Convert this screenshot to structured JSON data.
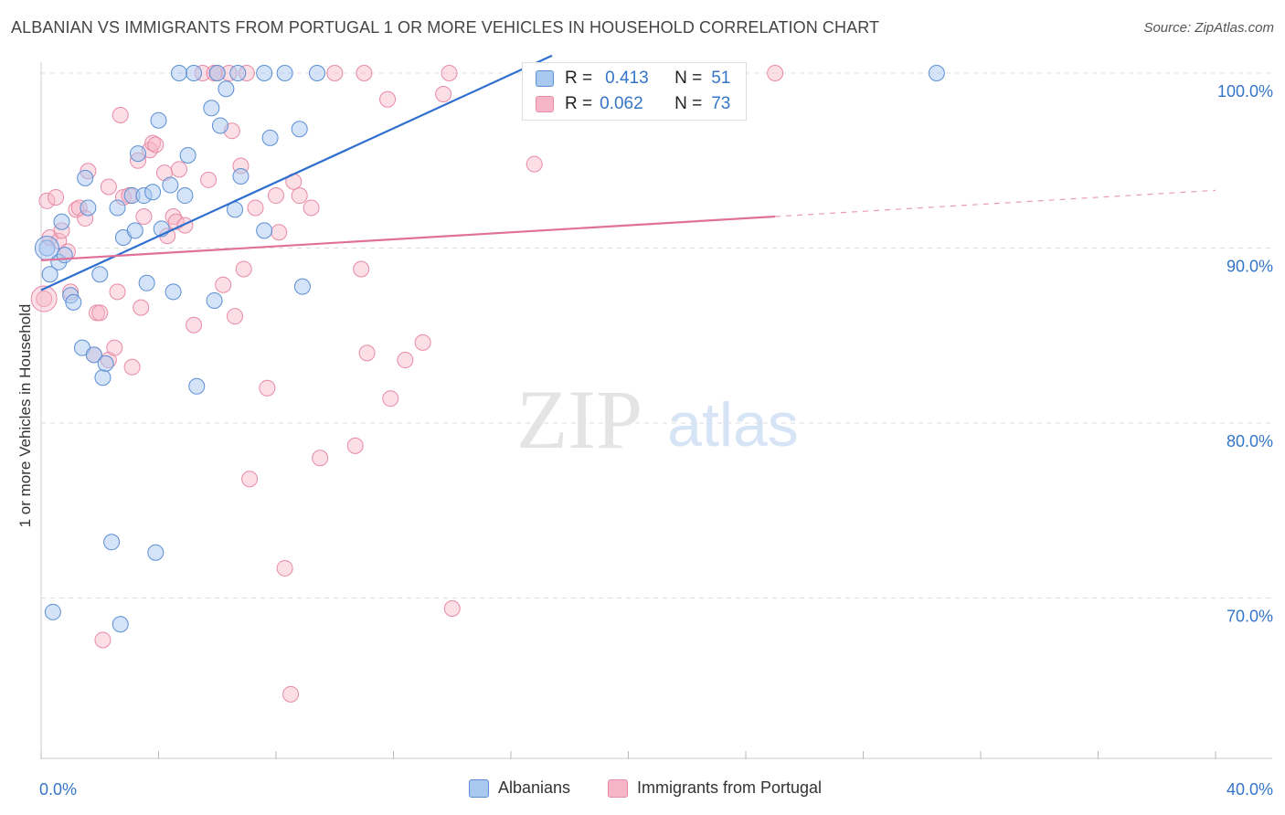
{
  "header": {
    "title": "ALBANIAN VS IMMIGRANTS FROM PORTUGAL 1 OR MORE VEHICLES IN HOUSEHOLD CORRELATION CHART",
    "source": "Source: ZipAtlas.com"
  },
  "watermark": {
    "zip": "ZIP",
    "atlas": "atlas"
  },
  "legend": {
    "r_label": "R =",
    "n_label": "N =",
    "series": [
      {
        "r": "0.413",
        "n": "51"
      },
      {
        "r": "0.062",
        "n": "73"
      }
    ]
  },
  "colors": {
    "blue_fill": "#a9c8ef",
    "blue_stroke": "#5b8fd4",
    "blue_line": "#2f6fcd",
    "pink_fill": "#f7b6c8",
    "pink_stroke": "#e88aa6",
    "pink_line": "#e0719a",
    "axis_label": "#3575c9",
    "grid": "#dddddd"
  },
  "chart_data": {
    "type": "scatter",
    "title": "ALBANIAN VS IMMIGRANTS FROM PORTUGAL 1 OR MORE VEHICLES IN HOUSEHOLD CORRELATION CHART",
    "xlabel": "",
    "ylabel": "1 or more Vehicles in Household",
    "xlim": [
      0,
      40
    ],
    "ylim": [
      60.8,
      101.8
    ],
    "x_tick_labels": [
      "0.0%",
      "40.0%"
    ],
    "y_ticks": [
      70,
      80,
      90,
      100
    ],
    "y_tick_labels": [
      "70.0%",
      "80.0%",
      "90.0%",
      "100.0%"
    ],
    "grid": true,
    "legend_position": "top-center",
    "series": [
      {
        "name": "Albanians",
        "color": "#a9c8ef",
        "r": 0.413,
        "n": 51,
        "trend": {
          "x": [
            0.0,
            17.4
          ],
          "y": [
            87.6,
            101.0
          ]
        },
        "points": [
          [
            0.2,
            90.0
          ],
          [
            0.3,
            88.5
          ],
          [
            0.4,
            69.2
          ],
          [
            0.6,
            89.2
          ],
          [
            0.7,
            91.5
          ],
          [
            0.8,
            89.6
          ],
          [
            1.0,
            87.3
          ],
          [
            1.1,
            86.9
          ],
          [
            1.4,
            84.3
          ],
          [
            1.5,
            94.0
          ],
          [
            1.6,
            92.3
          ],
          [
            1.8,
            83.9
          ],
          [
            2.0,
            88.5
          ],
          [
            2.1,
            82.6
          ],
          [
            2.2,
            83.4
          ],
          [
            2.4,
            73.2
          ],
          [
            2.6,
            92.3
          ],
          [
            2.7,
            68.5
          ],
          [
            2.8,
            90.6
          ],
          [
            3.1,
            93.0
          ],
          [
            3.2,
            91.0
          ],
          [
            3.3,
            95.4
          ],
          [
            3.5,
            93.0
          ],
          [
            3.6,
            88.0
          ],
          [
            3.8,
            93.2
          ],
          [
            3.9,
            72.6
          ],
          [
            4.0,
            97.3
          ],
          [
            4.1,
            91.1
          ],
          [
            4.4,
            93.6
          ],
          [
            4.5,
            87.5
          ],
          [
            4.7,
            100.0
          ],
          [
            4.9,
            93.0
          ],
          [
            5.0,
            95.3
          ],
          [
            5.2,
            100.0
          ],
          [
            5.3,
            82.1
          ],
          [
            5.8,
            98.0
          ],
          [
            5.9,
            87.0
          ],
          [
            6.0,
            100.0
          ],
          [
            6.1,
            97.0
          ],
          [
            6.3,
            99.1
          ],
          [
            6.6,
            92.2
          ],
          [
            6.7,
            100.0
          ],
          [
            6.8,
            94.1
          ],
          [
            7.6,
            100.0
          ],
          [
            7.6,
            91.0
          ],
          [
            7.8,
            96.3
          ],
          [
            8.3,
            100.0
          ],
          [
            8.8,
            96.8
          ],
          [
            8.9,
            87.8
          ],
          [
            9.4,
            100.0
          ],
          [
            30.5,
            100.0
          ]
        ]
      },
      {
        "name": "Immigrants from Portugal",
        "color": "#f7b6c8",
        "r": 0.062,
        "n": 73,
        "trend": {
          "x": [
            0.0,
            25.0
          ],
          "y": [
            89.3,
            91.8
          ]
        },
        "trend_extension": {
          "x": [
            25.0,
            40.0
          ],
          "y": [
            91.8,
            93.3
          ]
        },
        "points": [
          [
            0.1,
            87.1
          ],
          [
            0.2,
            92.7
          ],
          [
            0.3,
            90.6
          ],
          [
            0.5,
            92.9
          ],
          [
            0.6,
            90.4
          ],
          [
            0.7,
            91.0
          ],
          [
            0.9,
            89.8
          ],
          [
            1.0,
            87.5
          ],
          [
            1.2,
            92.2
          ],
          [
            1.3,
            92.3
          ],
          [
            1.5,
            91.7
          ],
          [
            1.6,
            94.4
          ],
          [
            1.8,
            83.9
          ],
          [
            1.9,
            86.3
          ],
          [
            2.0,
            86.3
          ],
          [
            2.1,
            67.6
          ],
          [
            2.3,
            83.6
          ],
          [
            2.3,
            93.5
          ],
          [
            2.5,
            84.3
          ],
          [
            2.6,
            87.5
          ],
          [
            2.7,
            97.6
          ],
          [
            2.8,
            92.9
          ],
          [
            3.0,
            93.0
          ],
          [
            3.1,
            83.2
          ],
          [
            3.3,
            95.0
          ],
          [
            3.4,
            86.6
          ],
          [
            3.5,
            91.8
          ],
          [
            3.7,
            95.6
          ],
          [
            3.8,
            96.0
          ],
          [
            3.9,
            95.9
          ],
          [
            4.2,
            94.3
          ],
          [
            4.3,
            90.7
          ],
          [
            4.5,
            91.8
          ],
          [
            4.6,
            91.5
          ],
          [
            4.7,
            94.5
          ],
          [
            4.9,
            91.3
          ],
          [
            5.2,
            85.6
          ],
          [
            5.5,
            100.0
          ],
          [
            5.7,
            93.9
          ],
          [
            5.9,
            100.0
          ],
          [
            6.0,
            100.0
          ],
          [
            6.2,
            87.9
          ],
          [
            6.4,
            100.0
          ],
          [
            6.5,
            96.7
          ],
          [
            6.6,
            86.1
          ],
          [
            6.8,
            94.7
          ],
          [
            6.9,
            88.8
          ],
          [
            7.0,
            100.0
          ],
          [
            7.1,
            76.8
          ],
          [
            7.3,
            92.3
          ],
          [
            7.7,
            82.0
          ],
          [
            8.0,
            93.0
          ],
          [
            8.1,
            90.9
          ],
          [
            8.3,
            71.7
          ],
          [
            8.5,
            64.5
          ],
          [
            8.6,
            93.8
          ],
          [
            8.8,
            93.0
          ],
          [
            9.2,
            92.3
          ],
          [
            9.5,
            78.0
          ],
          [
            10.0,
            100.0
          ],
          [
            10.7,
            78.7
          ],
          [
            10.9,
            88.8
          ],
          [
            11.0,
            100.0
          ],
          [
            11.1,
            84.0
          ],
          [
            11.8,
            98.5
          ],
          [
            11.9,
            81.4
          ],
          [
            12.4,
            83.6
          ],
          [
            13.0,
            84.6
          ],
          [
            13.7,
            98.8
          ],
          [
            13.9,
            100.0
          ],
          [
            14.0,
            69.4
          ],
          [
            16.8,
            94.8
          ],
          [
            25.0,
            100.0
          ]
        ]
      }
    ]
  },
  "bottom_legend": [
    {
      "label": "Albanians"
    },
    {
      "label": "Immigrants from Portugal"
    }
  ]
}
